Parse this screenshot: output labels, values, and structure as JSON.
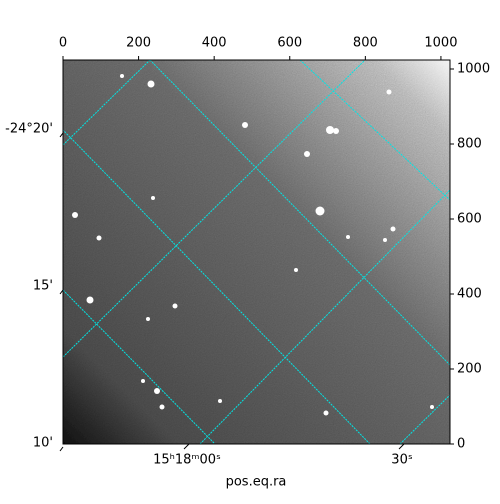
{
  "chart_data": {
    "type": "image",
    "xlabel": "pos.eq.ra",
    "xlim": [
      0,
      1024
    ],
    "ylim": [
      0,
      1024
    ],
    "xticks": [
      0,
      200,
      400,
      600,
      800,
      1000
    ],
    "yticks": [
      0,
      200,
      400,
      600,
      800,
      1000
    ],
    "wcs_yticks": [
      "-24°20'",
      "15'",
      "10'"
    ],
    "wcs_xticks": [
      "15ʰ18ᵐ00ˢ",
      "30ˢ"
    ],
    "grid_color": "#00e5e5"
  }
}
